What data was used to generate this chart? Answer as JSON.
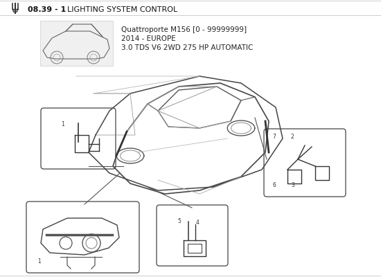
{
  "background_color": "#ffffff",
  "text_color": "#1a1a1a",
  "header_bold": "08.39 - 1",
  "header_normal": " LIGHTING SYSTEM CONTROL",
  "subtitle_lines": [
    "Quattroporte M156 [0 - 99999999]",
    "2014 - EUROPE",
    "3.0 TDS V6 2WD 275 HP AUTOMATIC"
  ],
  "line_color": "#555555",
  "box_edge_color": "#444444",
  "part_line_color": "#333333"
}
